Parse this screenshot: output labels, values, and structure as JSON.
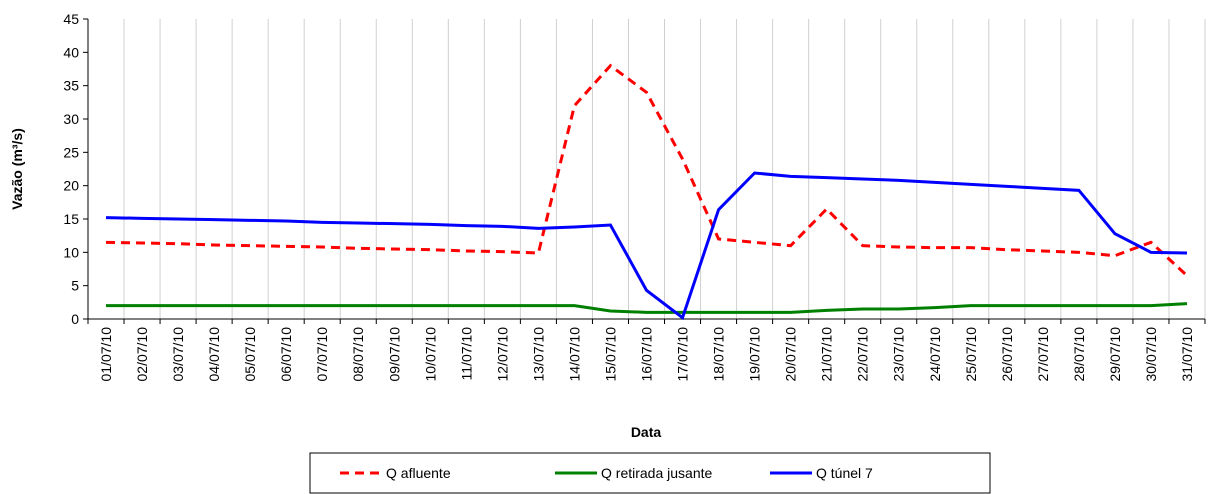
{
  "chart_data": {
    "type": "line",
    "x_label": "Data",
    "y_label": "Vazão (m³/s)",
    "categories": [
      "01/07/10",
      "02/07/10",
      "03/07/10",
      "04/07/10",
      "05/07/10",
      "06/07/10",
      "07/07/10",
      "08/07/10",
      "09/07/10",
      "10/07/10",
      "11/07/10",
      "12/07/10",
      "13/07/10",
      "14/07/10",
      "15/07/10",
      "16/07/10",
      "17/07/10",
      "18/07/10",
      "19/07/10",
      "20/07/10",
      "21/07/10",
      "22/07/10",
      "23/07/10",
      "24/07/10",
      "25/07/10",
      "26/07/10",
      "27/07/10",
      "28/07/10",
      "29/07/10",
      "30/07/10",
      "31/07/10"
    ],
    "series": [
      {
        "name": "Q afluente",
        "color": "#ff0000",
        "dashed": true,
        "values": [
          11.5,
          11.4,
          11.3,
          11.1,
          11.0,
          10.9,
          10.8,
          10.6,
          10.5,
          10.4,
          10.2,
          10.1,
          9.9,
          32,
          38,
          34,
          24,
          12,
          11.5,
          11,
          16.5,
          11,
          10.8,
          10.7,
          10.7,
          10.4,
          10.2,
          10,
          9.5,
          11.5,
          6.5
        ]
      },
      {
        "name": "Q retirada jusante",
        "color": "#008000",
        "dashed": false,
        "values": [
          2,
          2,
          2,
          2,
          2,
          2,
          2,
          2,
          2,
          2,
          2,
          2,
          2,
          2,
          1.2,
          1,
          1,
          1,
          1,
          1,
          1.3,
          1.5,
          1.5,
          1.7,
          2,
          2,
          2,
          2,
          2,
          2,
          2.3
        ]
      },
      {
        "name": "Q túnel 7",
        "color": "#0000ff",
        "dashed": false,
        "values": [
          15.2,
          15.1,
          15,
          14.9,
          14.8,
          14.7,
          14.5,
          14.4,
          14.3,
          14.2,
          14,
          13.9,
          13.6,
          13.8,
          14.1,
          4.3,
          0.2,
          16.4,
          21.9,
          21.4,
          21.2,
          21.0,
          20.8,
          20.5,
          20.2,
          19.9,
          19.6,
          19.3,
          12.8,
          10,
          9.9
        ]
      }
    ],
    "ylim": [
      0,
      45
    ],
    "yticks": [
      0,
      5,
      10,
      15,
      20,
      25,
      30,
      35,
      40,
      45
    ],
    "grid": true
  }
}
